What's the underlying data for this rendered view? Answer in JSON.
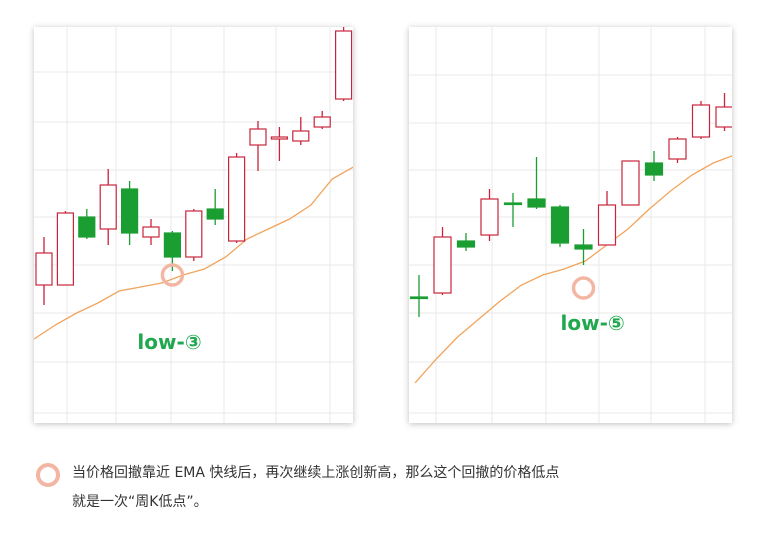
{
  "colors": {
    "bull": "#c8243c",
    "bear": "#1a9e32",
    "ema": "#f2a45c",
    "grid": "#e8e8e8",
    "marker": "#f3b6a3",
    "label": "#21a84e"
  },
  "chart_data": [
    {
      "type": "candlestick",
      "annotation": "low-③",
      "annotation_candle_index": 6,
      "grid": true,
      "candles": [
        {
          "o": 0.42,
          "c": 0.58,
          "h": 0.66,
          "l": 0.32
        },
        {
          "o": 0.42,
          "c": 0.78,
          "h": 0.79,
          "l": 0.42
        },
        {
          "o": 0.76,
          "c": 0.66,
          "h": 0.8,
          "l": 0.65
        },
        {
          "o": 0.7,
          "c": 0.92,
          "h": 1.0,
          "l": 0.62
        },
        {
          "o": 0.9,
          "c": 0.68,
          "h": 0.94,
          "l": 0.62
        },
        {
          "o": 0.66,
          "c": 0.71,
          "h": 0.75,
          "l": 0.62
        },
        {
          "o": 0.68,
          "c": 0.56,
          "h": 0.69,
          "l": 0.49
        },
        {
          "o": 0.56,
          "c": 0.79,
          "h": 0.8,
          "l": 0.54
        },
        {
          "o": 0.8,
          "c": 0.75,
          "h": 0.9,
          "l": 0.72
        },
        {
          "o": 0.64,
          "c": 1.06,
          "h": 1.08,
          "l": 0.63
        },
        {
          "o": 1.12,
          "c": 1.2,
          "h": 1.24,
          "l": 0.99
        },
        {
          "o": 1.15,
          "c": 1.16,
          "h": 1.21,
          "l": 1.04
        },
        {
          "o": 1.14,
          "c": 1.19,
          "h": 1.26,
          "l": 1.12
        },
        {
          "o": 1.21,
          "c": 1.26,
          "h": 1.29,
          "l": 1.2
        },
        {
          "o": 1.35,
          "c": 1.69,
          "h": 1.73,
          "l": 1.34
        }
      ],
      "ema": [
        0.15,
        0.22,
        0.28,
        0.33,
        0.39,
        0.41,
        0.43,
        0.47,
        0.5,
        0.56,
        0.65,
        0.7,
        0.75,
        0.82,
        0.95,
        1.01
      ]
    },
    {
      "type": "candlestick",
      "annotation": "low-⑤",
      "annotation_candle_index": 7,
      "grid": true,
      "candles": [
        {
          "o": 0.4,
          "c": 0.4,
          "h": 0.51,
          "l": 0.3
        },
        {
          "o": 0.42,
          "c": 0.7,
          "h": 0.75,
          "l": 0.41
        },
        {
          "o": 0.68,
          "c": 0.65,
          "h": 0.72,
          "l": 0.63
        },
        {
          "o": 0.71,
          "c": 0.89,
          "h": 0.94,
          "l": 0.68
        },
        {
          "o": 0.87,
          "c": 0.87,
          "h": 0.92,
          "l": 0.75
        },
        {
          "o": 0.89,
          "c": 0.85,
          "h": 1.1,
          "l": 0.84
        },
        {
          "o": 0.85,
          "c": 0.67,
          "h": 0.86,
          "l": 0.65
        },
        {
          "o": 0.66,
          "c": 0.64,
          "h": 0.74,
          "l": 0.56
        },
        {
          "o": 0.66,
          "c": 0.86,
          "h": 0.93,
          "l": 0.66
        },
        {
          "o": 0.86,
          "c": 1.08,
          "h": 1.08,
          "l": 0.86
        },
        {
          "o": 1.07,
          "c": 1.01,
          "h": 1.13,
          "l": 0.98
        },
        {
          "o": 1.09,
          "c": 1.19,
          "h": 1.2,
          "l": 1.07
        },
        {
          "o": 1.2,
          "c": 1.36,
          "h": 1.38,
          "l": 1.19
        },
        {
          "o": 1.25,
          "c": 1.35,
          "h": 1.42,
          "l": 1.23
        }
      ],
      "ema": [
        -0.03,
        0.09,
        0.2,
        0.29,
        0.38,
        0.46,
        0.51,
        0.54,
        0.58,
        0.66,
        0.74,
        0.84,
        0.93,
        1.01,
        1.07,
        1.11
      ]
    }
  ],
  "caption": {
    "line1": "当价格回撤靠近 EMA 快线后，再次继续上涨创新高，那么这个回撤的价格低点",
    "line2": "就是一次“周K低点”。"
  }
}
